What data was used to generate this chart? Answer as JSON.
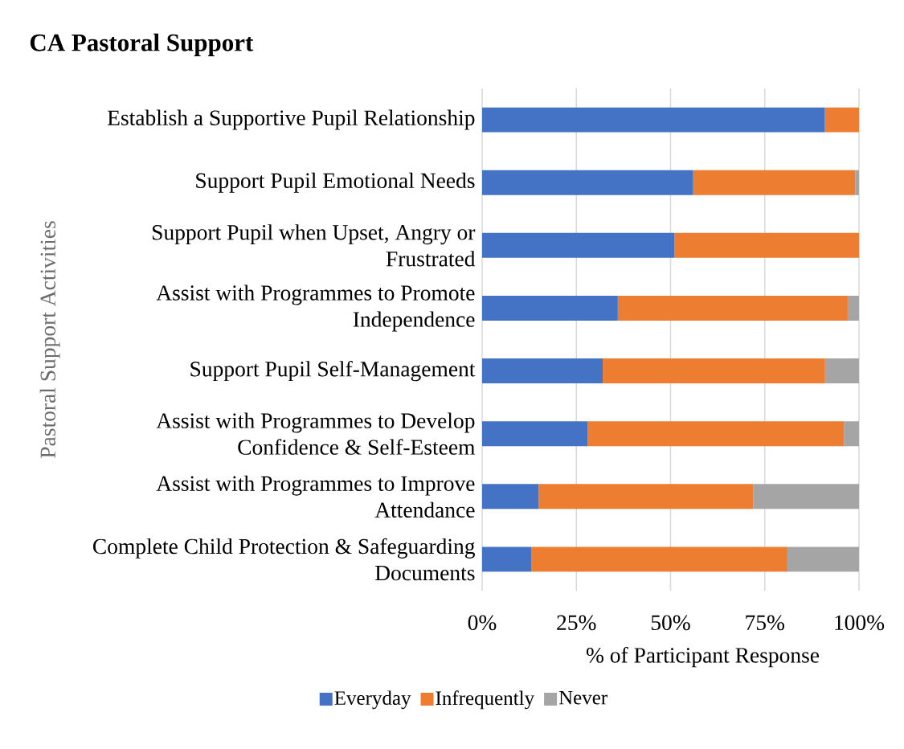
{
  "chart_data": {
    "type": "bar",
    "orientation": "horizontal",
    "stacked": true,
    "title": "CA Pastoral Support",
    "xlabel": "% of Participant Response",
    "ylabel": "Pastoral Support Activities",
    "categories": [
      "Establish a Supportive Pupil Relationship",
      "Support Pupil Emotional Needs",
      "Support Pupil when Upset, Angry or Frustrated",
      "Assist with Programmes to Promote Independence",
      "Support Pupil Self-Management",
      "Assist with Programmes to Develop Confidence & Self-Esteem",
      "Assist with Programmes to Improve Attendance",
      "Complete Child Protection & Safeguarding Documents"
    ],
    "series": [
      {
        "name": "Everyday",
        "color": "#4472c4",
        "values": [
          91,
          56,
          51,
          36,
          32,
          28,
          15,
          13
        ]
      },
      {
        "name": "Infrequently",
        "color": "#ed7d31",
        "values": [
          9,
          43,
          49,
          61,
          59,
          68,
          57,
          68
        ]
      },
      {
        "name": "Never",
        "color": "#a5a5a5",
        "values": [
          0,
          1,
          0,
          3,
          9,
          4,
          28,
          19
        ]
      }
    ],
    "xlim": [
      0,
      100
    ],
    "xticks": [
      {
        "value": 0,
        "label": "0%"
      },
      {
        "value": 25,
        "label": "25%"
      },
      {
        "value": 50,
        "label": "50%"
      },
      {
        "value": 75,
        "label": "75%"
      },
      {
        "value": 100,
        "label": "100%"
      }
    ],
    "grid": "x",
    "legend": "bottom"
  }
}
